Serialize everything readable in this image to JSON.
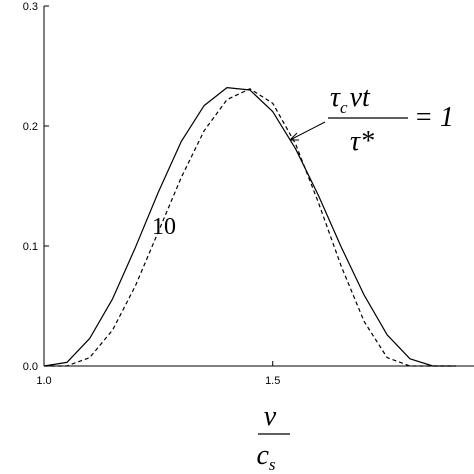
{
  "chart_data": {
    "type": "line",
    "x": [
      1.0,
      1.05,
      1.1,
      1.15,
      1.2,
      1.25,
      1.3,
      1.35,
      1.4,
      1.45,
      1.5,
      1.55,
      1.6,
      1.65,
      1.7,
      1.75,
      1.8,
      1.85,
      1.9
    ],
    "series": [
      {
        "color": "#000000",
        "dash": "solid",
        "values": [
          0,
          0.003,
          0.023,
          0.056,
          0.099,
          0.145,
          0.187,
          0.217,
          0.232,
          0.23,
          0.212,
          0.181,
          0.142,
          0.099,
          0.059,
          0.026,
          0.006,
          0,
          0
        ]
      },
      {
        "color": "#000000",
        "dash": "dashed",
        "values": [
          0,
          0,
          0.007,
          0.03,
          0.067,
          0.112,
          0.157,
          0.196,
          0.222,
          0.231,
          0.219,
          0.185,
          0.136,
          0.083,
          0.037,
          0.007,
          0,
          0,
          0
        ]
      }
    ],
    "xlim": [
      1.0,
      1.94
    ],
    "ylim": [
      0,
      0.3
    ],
    "xticks": [
      {
        "value": 1.0,
        "label": "1.0"
      },
      {
        "value": 1.5,
        "label": "1.5"
      }
    ],
    "yticks": [
      {
        "value": 0,
        "label": "0.0"
      },
      {
        "value": 0.1,
        "label": "0.1"
      },
      {
        "value": 0.2,
        "label": "0.2"
      },
      {
        "value": 0.3,
        "label": "0.3"
      }
    ],
    "x_label": {
      "numerator": "v",
      "denominator": "c",
      "denominator_subscript": "s"
    },
    "annotations": {
      "ratio": {
        "tau": "τ",
        "sub": "c",
        "rest": "vt",
        "denominator": "τ*",
        "equals": "= 1"
      },
      "dashed_label": "10"
    }
  }
}
